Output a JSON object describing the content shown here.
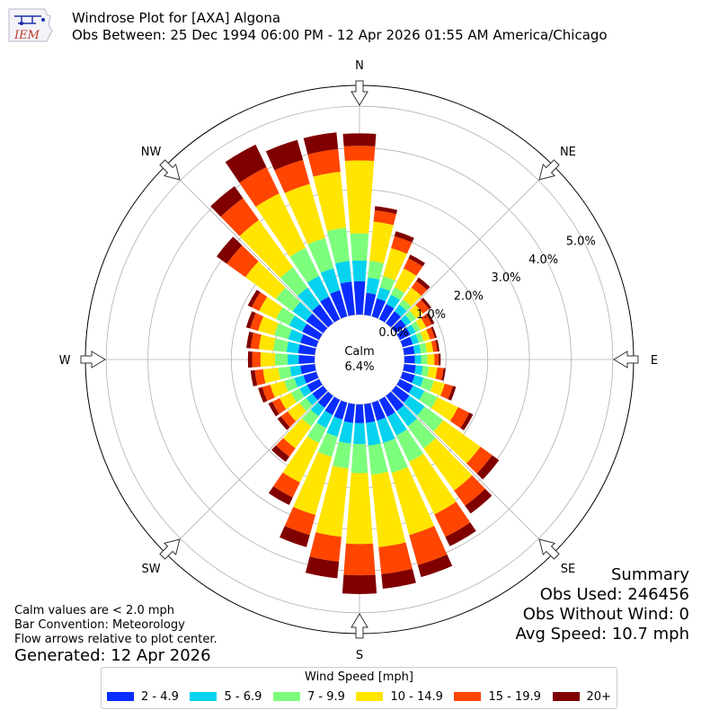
{
  "header": {
    "title": "Windrose Plot for [AXA] Algona",
    "subtitle": "Obs Between: 25 Dec 1994 06:00 PM - 12 Apr 2026 01:55 AM America/Chicago",
    "logo_text": "IEM"
  },
  "center": {
    "label": "Calm",
    "value": "6.4%"
  },
  "summary": {
    "title": "Summary",
    "obs_used": "Obs Used: 246456",
    "obs_without_wind": "Obs Without Wind: 0",
    "avg_speed": "Avg Speed: 10.7 mph"
  },
  "notes": {
    "calm": "Calm values are < 2.0 mph",
    "bar": "Bar Convention: Meteorology",
    "flow": "Flow arrows relative to plot center.",
    "generated": "Generated: 12 Apr 2026"
  },
  "chart_data": {
    "type": "windrose",
    "direction_labels": [
      "N",
      "NE",
      "E",
      "SE",
      "S",
      "SW",
      "W",
      "NW"
    ],
    "radial_tick_labels": [
      "0.0%",
      "1.0%",
      "2.0%",
      "3.0%",
      "4.0%",
      "5.0%"
    ],
    "radial_ticks": [
      0,
      1,
      2,
      3,
      4,
      5
    ],
    "rmax": 5.5,
    "legend_title": "Wind Speed [mph]",
    "bins": [
      {
        "label": "2 - 4.9",
        "color": "#0a2cff"
      },
      {
        "label": "5 - 6.9",
        "color": "#05d2ef"
      },
      {
        "label": "7 - 9.9",
        "color": "#7cfe7c"
      },
      {
        "label": "10 - 14.9",
        "color": "#ffe500"
      },
      {
        "label": "15 - 19.9",
        "color": "#ff4500"
      },
      {
        "label": "20+",
        "color": "#800000"
      }
    ],
    "directions": [
      0,
      10,
      20,
      30,
      40,
      50,
      60,
      70,
      80,
      90,
      100,
      110,
      120,
      130,
      140,
      150,
      160,
      170,
      180,
      190,
      200,
      210,
      220,
      230,
      240,
      250,
      260,
      270,
      280,
      290,
      300,
      310,
      320,
      330,
      340,
      350
    ],
    "cumulative": [
      [
        0.8,
        1.3,
        1.95,
        3.7,
        4.05,
        4.35
      ],
      [
        0.53,
        0.9,
        1.3,
        2.25,
        2.52,
        2.62
      ],
      [
        0.45,
        0.72,
        1.0,
        1.7,
        2.0,
        2.12
      ],
      [
        0.4,
        0.65,
        0.85,
        1.35,
        1.62,
        1.72
      ],
      [
        0.35,
        0.55,
        0.7,
        1.05,
        1.25,
        1.35
      ],
      [
        0.3,
        0.45,
        0.6,
        0.8,
        0.98,
        1.05
      ],
      [
        0.28,
        0.42,
        0.55,
        0.7,
        0.85,
        0.92
      ],
      [
        0.25,
        0.4,
        0.52,
        0.68,
        0.8,
        0.85
      ],
      [
        0.25,
        0.4,
        0.55,
        0.7,
        0.8,
        0.85
      ],
      [
        0.25,
        0.4,
        0.55,
        0.72,
        0.82,
        0.87
      ],
      [
        0.28,
        0.45,
        0.6,
        0.8,
        0.95,
        1.0
      ],
      [
        0.3,
        0.52,
        0.78,
        1.05,
        1.25,
        1.33
      ],
      [
        0.35,
        0.65,
        1.0,
        1.55,
        1.85,
        1.95
      ],
      [
        0.4,
        0.85,
        1.4,
        2.5,
        2.85,
        3.05
      ],
      [
        0.45,
        0.9,
        1.55,
        2.8,
        3.25,
        3.48
      ],
      [
        0.45,
        0.95,
        1.65,
        3.05,
        3.65,
        3.9
      ],
      [
        0.45,
        1.0,
        1.75,
        3.3,
        4.05,
        4.35
      ],
      [
        0.45,
        1.0,
        1.7,
        3.45,
        4.1,
        4.45
      ],
      [
        0.45,
        0.95,
        1.65,
        3.35,
        4.1,
        4.55
      ],
      [
        0.45,
        0.95,
        1.55,
        3.2,
        3.8,
        4.2
      ],
      [
        0.42,
        0.85,
        1.35,
        2.8,
        3.3,
        3.6
      ],
      [
        0.4,
        0.75,
        1.15,
        2.2,
        2.6,
        2.8
      ],
      [
        0.35,
        0.6,
        0.9,
        1.55,
        1.8,
        1.95
      ],
      [
        0.32,
        0.5,
        0.7,
        1.05,
        1.25,
        1.35
      ],
      [
        0.32,
        0.52,
        0.75,
        1.05,
        1.25,
        1.35
      ],
      [
        0.32,
        0.55,
        0.8,
        1.15,
        1.35,
        1.45
      ],
      [
        0.35,
        0.6,
        0.88,
        1.25,
        1.45,
        1.55
      ],
      [
        0.38,
        0.65,
        0.95,
        1.3,
        1.5,
        1.6
      ],
      [
        0.4,
        0.68,
        1.0,
        1.35,
        1.55,
        1.65
      ],
      [
        0.4,
        0.7,
        1.05,
        1.45,
        1.65,
        1.75
      ],
      [
        0.45,
        0.8,
        1.15,
        1.6,
        1.8,
        1.9
      ],
      [
        0.5,
        0.9,
        1.4,
        2.3,
        2.85,
        3.15
      ],
      [
        0.55,
        1.05,
        1.65,
        3.05,
        3.7,
        4.05
      ],
      [
        0.6,
        1.15,
        1.9,
        3.35,
        4.05,
        4.65
      ],
      [
        0.65,
        1.2,
        1.95,
        3.3,
        3.9,
        4.4
      ],
      [
        0.8,
        1.3,
        2.1,
        3.45,
        4.0,
        4.4
      ]
    ]
  }
}
